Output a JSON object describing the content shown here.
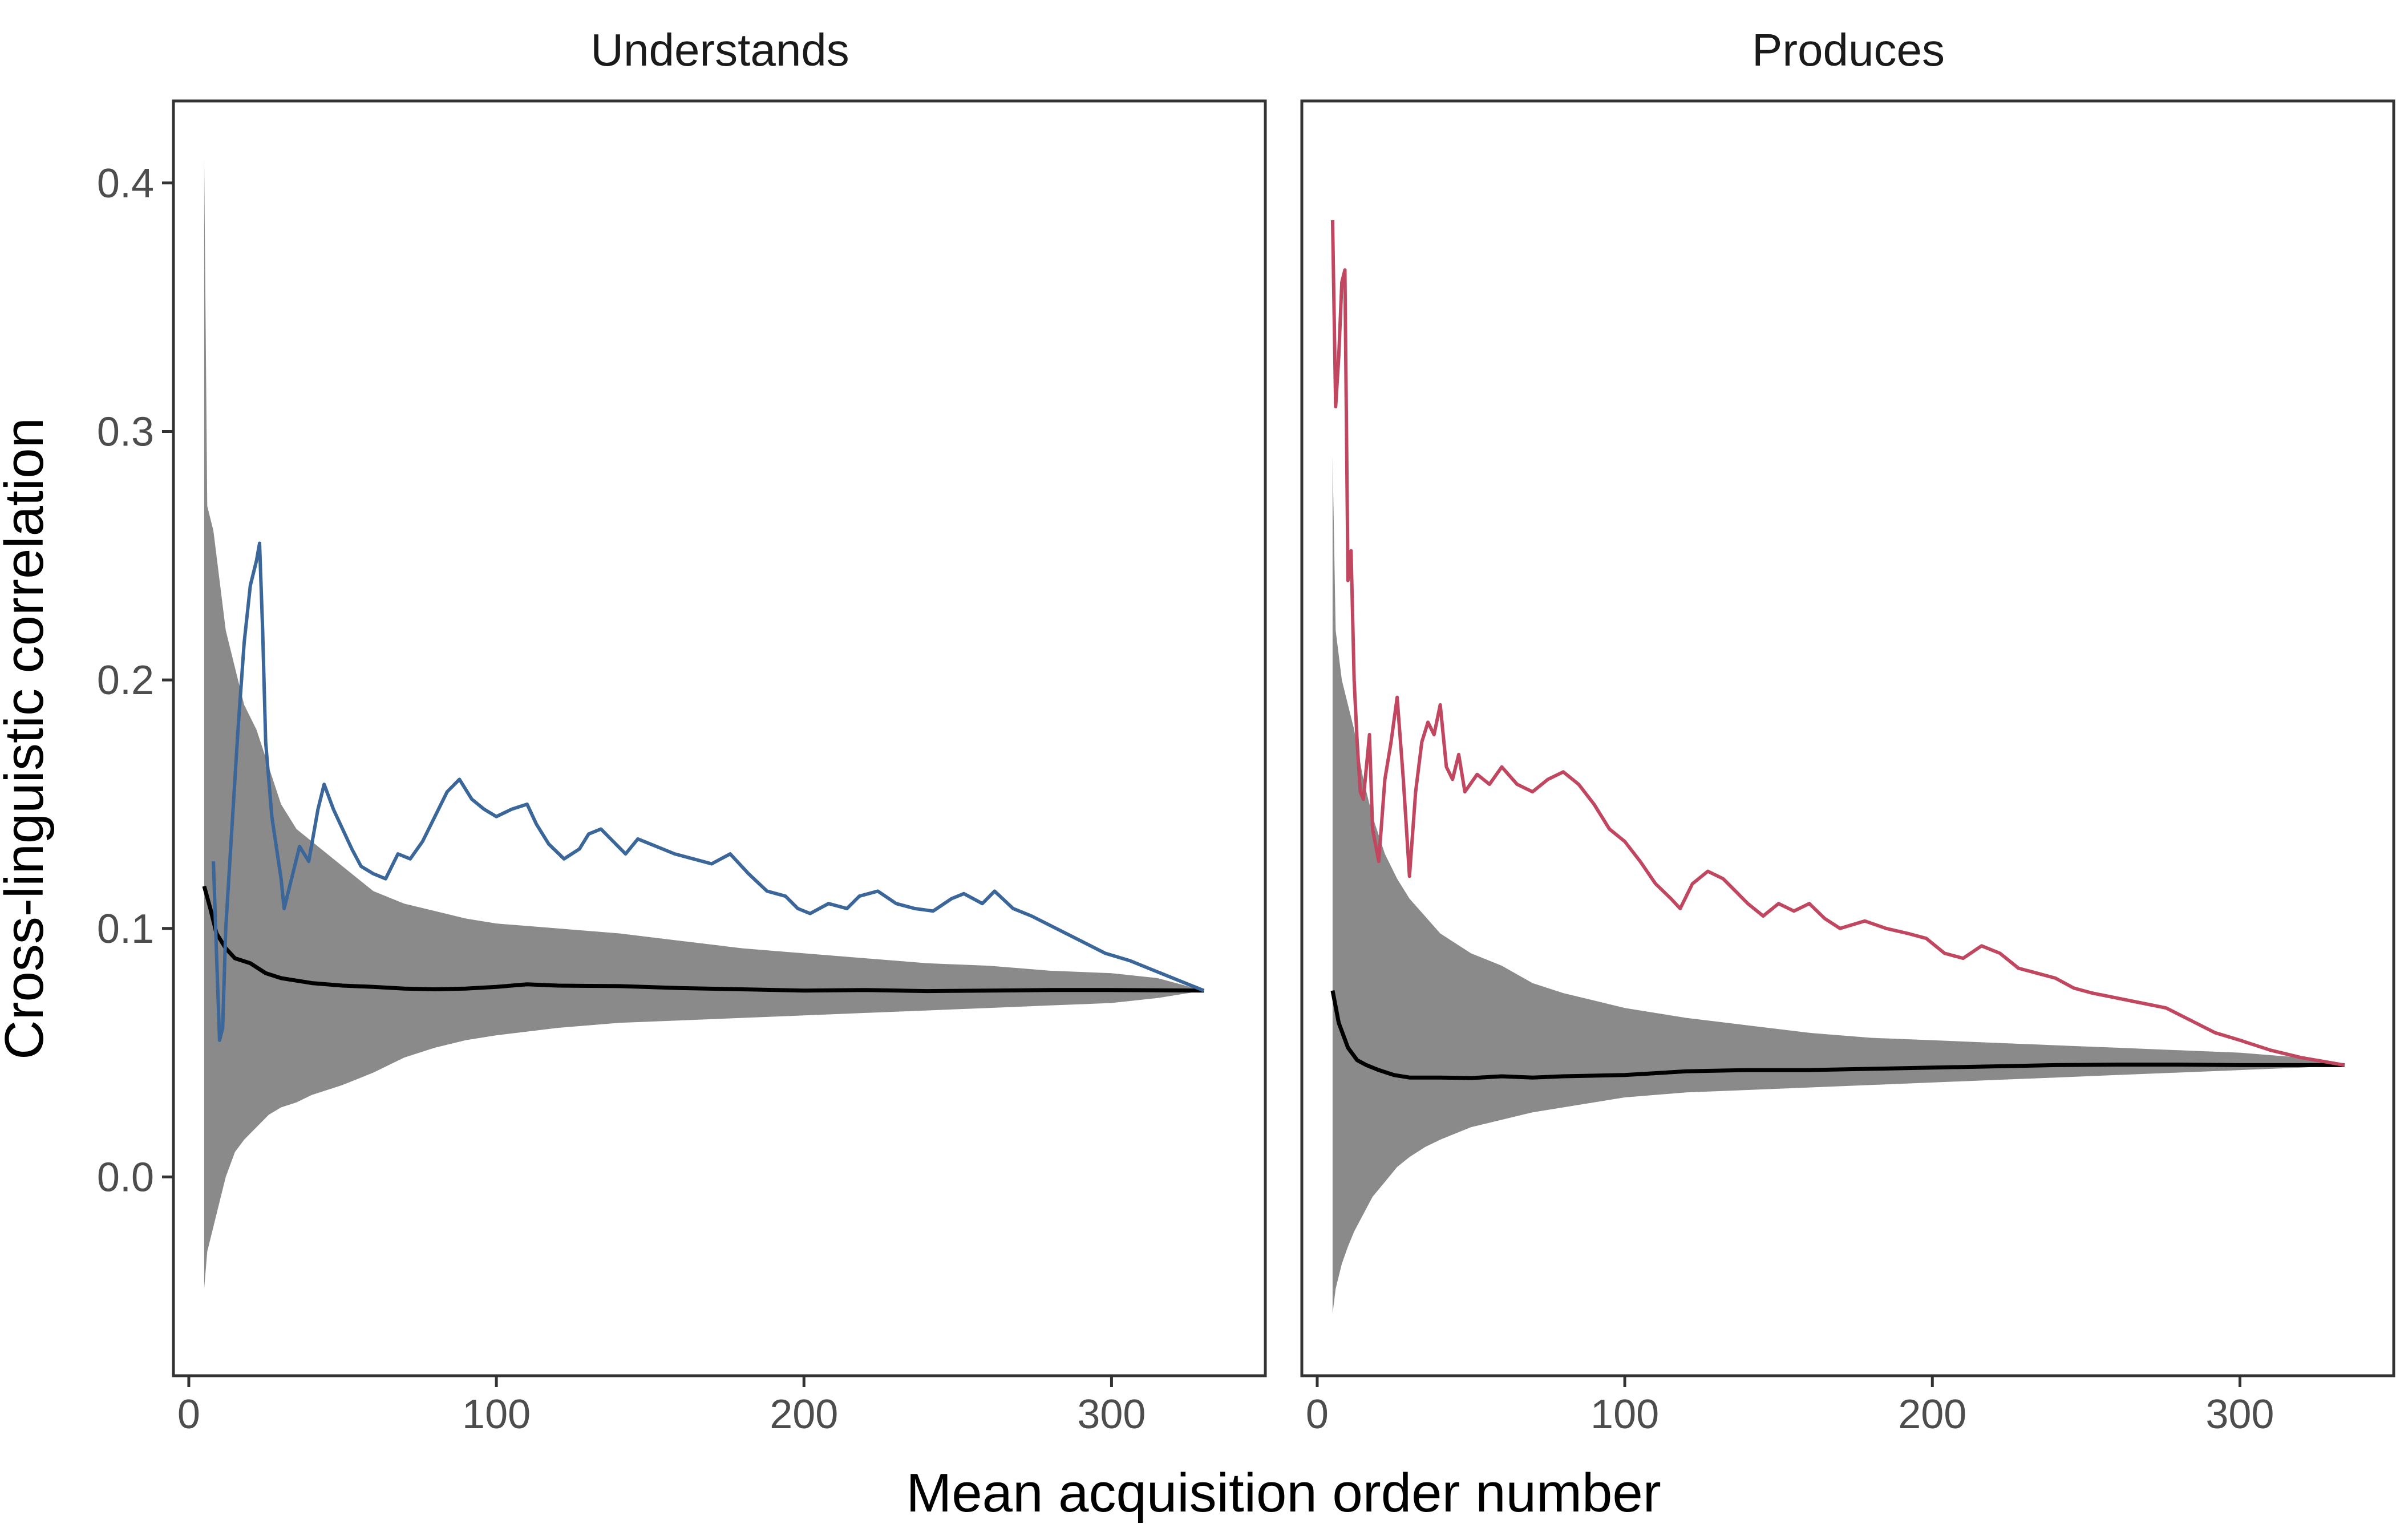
{
  "xlabel": "Mean acquisition order number",
  "ylabel": "Cross-linguistic correlation",
  "colors": {
    "ribbon": "#8a8a8a",
    "mean_line": "#000000",
    "understands": "#3a6699",
    "produces": "#c0475f",
    "panel_border": "#333333"
  },
  "chart_data": [
    {
      "type": "line",
      "panel": "Understands",
      "xlim": [
        -5,
        350
      ],
      "ylim": [
        -0.08,
        0.433
      ],
      "x_ticks": [
        0,
        100,
        200,
        300
      ],
      "y_ticks": [
        0.0,
        0.1,
        0.2,
        0.3,
        0.4
      ],
      "y_tick_labels": [
        "0.0",
        "0.1",
        "0.2",
        "0.3",
        "0.4"
      ],
      "grid": false,
      "observed": {
        "color": "#3a6699",
        "points": [
          [
            8,
            0.127
          ],
          [
            9,
            0.09
          ],
          [
            10,
            0.055
          ],
          [
            11,
            0.06
          ],
          [
            12,
            0.1
          ],
          [
            14,
            0.14
          ],
          [
            16,
            0.18
          ],
          [
            18,
            0.215
          ],
          [
            20,
            0.238
          ],
          [
            22,
            0.248
          ],
          [
            23,
            0.255
          ],
          [
            24,
            0.22
          ],
          [
            25,
            0.175
          ],
          [
            27,
            0.145
          ],
          [
            30,
            0.12
          ],
          [
            31,
            0.108
          ],
          [
            33,
            0.118
          ],
          [
            36,
            0.133
          ],
          [
            39,
            0.127
          ],
          [
            42,
            0.148
          ],
          [
            44,
            0.158
          ],
          [
            47,
            0.148
          ],
          [
            50,
            0.14
          ],
          [
            53,
            0.132
          ],
          [
            56,
            0.125
          ],
          [
            60,
            0.122
          ],
          [
            64,
            0.12
          ],
          [
            68,
            0.13
          ],
          [
            72,
            0.128
          ],
          [
            76,
            0.135
          ],
          [
            80,
            0.145
          ],
          [
            84,
            0.155
          ],
          [
            88,
            0.16
          ],
          [
            92,
            0.152
          ],
          [
            96,
            0.148
          ],
          [
            100,
            0.145
          ],
          [
            105,
            0.148
          ],
          [
            110,
            0.15
          ],
          [
            113,
            0.142
          ],
          [
            117,
            0.134
          ],
          [
            122,
            0.128
          ],
          [
            127,
            0.132
          ],
          [
            130,
            0.138
          ],
          [
            134,
            0.14
          ],
          [
            138,
            0.135
          ],
          [
            142,
            0.13
          ],
          [
            146,
            0.136
          ],
          [
            152,
            0.133
          ],
          [
            158,
            0.13
          ],
          [
            164,
            0.128
          ],
          [
            170,
            0.126
          ],
          [
            176,
            0.13
          ],
          [
            182,
            0.122
          ],
          [
            188,
            0.115
          ],
          [
            194,
            0.113
          ],
          [
            198,
            0.108
          ],
          [
            202,
            0.106
          ],
          [
            208,
            0.11
          ],
          [
            214,
            0.108
          ],
          [
            218,
            0.113
          ],
          [
            224,
            0.115
          ],
          [
            230,
            0.11
          ],
          [
            236,
            0.108
          ],
          [
            242,
            0.107
          ],
          [
            248,
            0.112
          ],
          [
            252,
            0.114
          ],
          [
            258,
            0.11
          ],
          [
            262,
            0.115
          ],
          [
            268,
            0.108
          ],
          [
            274,
            0.105
          ],
          [
            282,
            0.1
          ],
          [
            290,
            0.095
          ],
          [
            298,
            0.09
          ],
          [
            306,
            0.087
          ],
          [
            314,
            0.083
          ],
          [
            322,
            0.079
          ],
          [
            330,
            0.075
          ]
        ]
      },
      "mean": {
        "color": "#000000",
        "points": [
          [
            5,
            0.117
          ],
          [
            7,
            0.108
          ],
          [
            9,
            0.098
          ],
          [
            12,
            0.092
          ],
          [
            15,
            0.088
          ],
          [
            20,
            0.086
          ],
          [
            25,
            0.082
          ],
          [
            30,
            0.08
          ],
          [
            40,
            0.078
          ],
          [
            50,
            0.077
          ],
          [
            60,
            0.0765
          ],
          [
            70,
            0.0758
          ],
          [
            80,
            0.0755
          ],
          [
            90,
            0.0758
          ],
          [
            100,
            0.0765
          ],
          [
            110,
            0.0775
          ],
          [
            120,
            0.077
          ],
          [
            140,
            0.0768
          ],
          [
            160,
            0.076
          ],
          [
            180,
            0.0755
          ],
          [
            200,
            0.075
          ],
          [
            220,
            0.0752
          ],
          [
            240,
            0.0748
          ],
          [
            260,
            0.075
          ],
          [
            280,
            0.0752
          ],
          [
            300,
            0.0752
          ],
          [
            330,
            0.075
          ]
        ]
      },
      "ribbon": {
        "color": "#8a8a8a",
        "x": [
          5,
          6,
          8,
          10,
          12,
          15,
          18,
          22,
          26,
          30,
          35,
          40,
          50,
          60,
          70,
          80,
          90,
          100,
          120,
          140,
          160,
          180,
          200,
          220,
          240,
          260,
          280,
          300,
          315,
          330
        ],
        "upper": [
          0.41,
          0.27,
          0.26,
          0.24,
          0.22,
          0.205,
          0.19,
          0.18,
          0.165,
          0.15,
          0.14,
          0.135,
          0.125,
          0.115,
          0.11,
          0.107,
          0.104,
          0.102,
          0.1,
          0.098,
          0.095,
          0.092,
          0.09,
          0.088,
          0.086,
          0.085,
          0.083,
          0.082,
          0.08,
          0.075
        ],
        "lower": [
          -0.045,
          -0.03,
          -0.02,
          -0.01,
          0.0,
          0.01,
          0.015,
          0.02,
          0.025,
          0.028,
          0.03,
          0.033,
          0.037,
          0.042,
          0.048,
          0.052,
          0.055,
          0.057,
          0.06,
          0.062,
          0.063,
          0.064,
          0.065,
          0.066,
          0.067,
          0.068,
          0.069,
          0.07,
          0.072,
          0.075
        ]
      }
    },
    {
      "type": "line",
      "panel": "Produces",
      "xlim": [
        -5,
        350
      ],
      "ylim": [
        -0.08,
        0.433
      ],
      "x_ticks": [
        0,
        100,
        200,
        300
      ],
      "y_ticks": [
        0.0,
        0.1,
        0.2,
        0.3,
        0.4
      ],
      "grid": false,
      "observed": {
        "color": "#c0475f",
        "points": [
          [
            5,
            0.385
          ],
          [
            6,
            0.31
          ],
          [
            7,
            0.33
          ],
          [
            8,
            0.36
          ],
          [
            9,
            0.365
          ],
          [
            10,
            0.24
          ],
          [
            11,
            0.252
          ],
          [
            12,
            0.2
          ],
          [
            13,
            0.175
          ],
          [
            14,
            0.155
          ],
          [
            15,
            0.152
          ],
          [
            17,
            0.178
          ],
          [
            18,
            0.14
          ],
          [
            20,
            0.127
          ],
          [
            22,
            0.16
          ],
          [
            24,
            0.175
          ],
          [
            26,
            0.193
          ],
          [
            28,
            0.16
          ],
          [
            30,
            0.121
          ],
          [
            32,
            0.155
          ],
          [
            34,
            0.175
          ],
          [
            36,
            0.183
          ],
          [
            38,
            0.178
          ],
          [
            40,
            0.19
          ],
          [
            42,
            0.165
          ],
          [
            44,
            0.16
          ],
          [
            46,
            0.17
          ],
          [
            48,
            0.155
          ],
          [
            52,
            0.162
          ],
          [
            56,
            0.158
          ],
          [
            60,
            0.165
          ],
          [
            65,
            0.158
          ],
          [
            70,
            0.155
          ],
          [
            75,
            0.16
          ],
          [
            80,
            0.163
          ],
          [
            85,
            0.158
          ],
          [
            90,
            0.15
          ],
          [
            95,
            0.14
          ],
          [
            100,
            0.135
          ],
          [
            105,
            0.127
          ],
          [
            110,
            0.118
          ],
          [
            115,
            0.112
          ],
          [
            118,
            0.108
          ],
          [
            122,
            0.118
          ],
          [
            127,
            0.123
          ],
          [
            132,
            0.12
          ],
          [
            136,
            0.115
          ],
          [
            140,
            0.11
          ],
          [
            145,
            0.105
          ],
          [
            150,
            0.11
          ],
          [
            155,
            0.107
          ],
          [
            160,
            0.11
          ],
          [
            165,
            0.104
          ],
          [
            170,
            0.1
          ],
          [
            178,
            0.103
          ],
          [
            185,
            0.1
          ],
          [
            192,
            0.098
          ],
          [
            198,
            0.096
          ],
          [
            204,
            0.09
          ],
          [
            210,
            0.088
          ],
          [
            216,
            0.093
          ],
          [
            222,
            0.09
          ],
          [
            228,
            0.084
          ],
          [
            234,
            0.082
          ],
          [
            240,
            0.08
          ],
          [
            246,
            0.076
          ],
          [
            252,
            0.074
          ],
          [
            260,
            0.072
          ],
          [
            268,
            0.07
          ],
          [
            276,
            0.068
          ],
          [
            284,
            0.063
          ],
          [
            292,
            0.058
          ],
          [
            300,
            0.055
          ],
          [
            310,
            0.051
          ],
          [
            320,
            0.048
          ],
          [
            334,
            0.045
          ]
        ]
      },
      "mean": {
        "color": "#000000",
        "points": [
          [
            5,
            0.075
          ],
          [
            7,
            0.062
          ],
          [
            10,
            0.052
          ],
          [
            13,
            0.047
          ],
          [
            16,
            0.045
          ],
          [
            20,
            0.043
          ],
          [
            25,
            0.041
          ],
          [
            30,
            0.04
          ],
          [
            40,
            0.04
          ],
          [
            50,
            0.0398
          ],
          [
            60,
            0.0405
          ],
          [
            70,
            0.04
          ],
          [
            80,
            0.0405
          ],
          [
            100,
            0.041
          ],
          [
            120,
            0.0425
          ],
          [
            140,
            0.043
          ],
          [
            160,
            0.043
          ],
          [
            180,
            0.0435
          ],
          [
            200,
            0.044
          ],
          [
            220,
            0.0445
          ],
          [
            240,
            0.045
          ],
          [
            260,
            0.0452
          ],
          [
            280,
            0.0452
          ],
          [
            300,
            0.045
          ],
          [
            334,
            0.045
          ]
        ]
      },
      "ribbon": {
        "color": "#8a8a8a",
        "x": [
          5,
          6,
          8,
          10,
          12,
          15,
          18,
          22,
          26,
          30,
          35,
          40,
          50,
          60,
          70,
          80,
          90,
          100,
          120,
          140,
          160,
          180,
          200,
          220,
          240,
          260,
          280,
          300,
          320,
          334
        ],
        "upper": [
          0.29,
          0.22,
          0.2,
          0.19,
          0.18,
          0.16,
          0.145,
          0.13,
          0.12,
          0.112,
          0.105,
          0.098,
          0.09,
          0.085,
          0.078,
          0.074,
          0.071,
          0.068,
          0.064,
          0.061,
          0.058,
          0.056,
          0.055,
          0.054,
          0.053,
          0.052,
          0.051,
          0.05,
          0.048,
          0.045
        ],
        "lower": [
          -0.055,
          -0.045,
          -0.035,
          -0.028,
          -0.022,
          -0.015,
          -0.008,
          -0.002,
          0.004,
          0.008,
          0.012,
          0.015,
          0.02,
          0.023,
          0.026,
          0.028,
          0.03,
          0.032,
          0.034,
          0.035,
          0.036,
          0.037,
          0.038,
          0.039,
          0.04,
          0.041,
          0.042,
          0.043,
          0.044,
          0.045
        ]
      }
    }
  ]
}
